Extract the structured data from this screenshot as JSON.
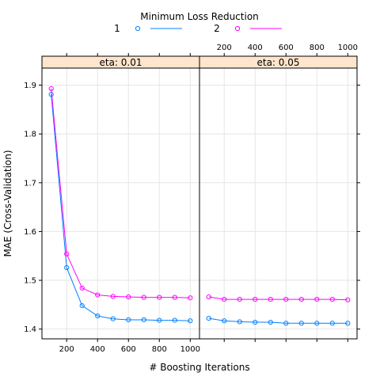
{
  "chart_data": {
    "type": "line",
    "xlabel": "# Boosting Iterations",
    "ylabel": "MAE (Cross-Validation)",
    "xlim": [
      40,
      1060
    ],
    "ylim": [
      1.38,
      1.935
    ],
    "x_ticks": [
      200,
      400,
      600,
      800,
      1000
    ],
    "y_ticks": [
      1.4,
      1.5,
      1.6,
      1.7,
      1.8,
      1.9
    ],
    "y_tick_labels": [
      "1.4",
      "1.5",
      "1.6",
      "1.7",
      "1.8",
      "1.9"
    ],
    "grid": true,
    "legend": {
      "title": "Minimum Loss Reduction",
      "placement": "top",
      "entries": [
        {
          "label": "1",
          "color": "#0080ff"
        },
        {
          "label": "2",
          "color": "#ff00ff"
        }
      ]
    },
    "x": [
      100,
      200,
      300,
      400,
      500,
      600,
      700,
      800,
      900,
      1000
    ],
    "panels": [
      {
        "strip": "eta: 0.01",
        "series": [
          {
            "name": "1",
            "color": "#0080ff",
            "values": [
              1.881,
              1.526,
              1.448,
              1.427,
              1.421,
              1.419,
              1.419,
              1.418,
              1.418,
              1.417
            ]
          },
          {
            "name": "2",
            "color": "#ff00ff",
            "values": [
              1.893,
              1.554,
              1.484,
              1.47,
              1.467,
              1.466,
              1.465,
              1.465,
              1.465,
              1.464
            ]
          }
        ]
      },
      {
        "strip": "eta: 0.05",
        "series": [
          {
            "name": "1",
            "color": "#0080ff",
            "values": [
              1.422,
              1.417,
              1.415,
              1.414,
              1.414,
              1.412,
              1.412,
              1.412,
              1.412,
              1.412
            ]
          },
          {
            "name": "2",
            "color": "#ff00ff",
            "values": [
              1.466,
              1.461,
              1.461,
              1.461,
              1.461,
              1.461,
              1.461,
              1.461,
              1.461,
              1.46
            ]
          }
        ]
      }
    ],
    "strip_color": "#ffe5cc"
  }
}
